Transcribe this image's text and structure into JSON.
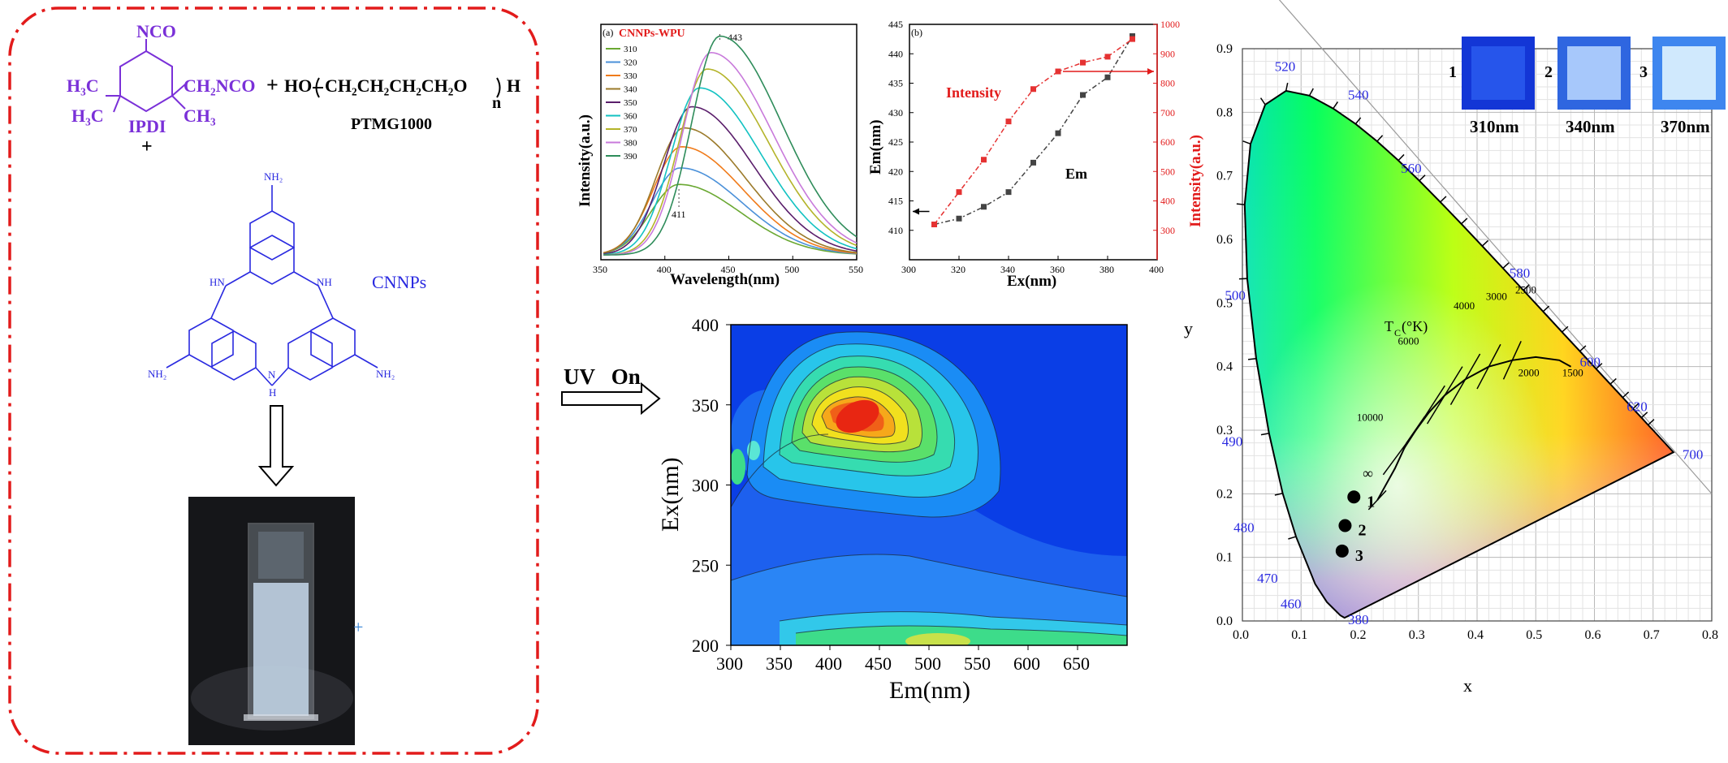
{
  "scheme": {
    "ipdi": {
      "nco_top": "NCO",
      "h3c_left": "H₃C",
      "ch2nco": "CH₂NCO",
      "h3c_low": "H₃C",
      "ch3": "CH₃",
      "name": "IPDI"
    },
    "plus1": "+",
    "ptmg": {
      "formula_prefix": "HO",
      "repeat": "CH₂CH₂CH₂CH₂O",
      "subscript": "n",
      "suffix": "H",
      "name": "PTMG1000"
    },
    "plus2": "+",
    "cnnps": {
      "nh2": "NH₂",
      "hn": "HN",
      "nh": "NH",
      "n": "N",
      "h": "H",
      "name": "CNNPs"
    },
    "arrow_label": "UV   On",
    "colors": {
      "border": "#e21b1b",
      "purple": "#7a30d8",
      "blue": "#2a2ae0"
    }
  },
  "panel_a": {
    "tag": "(a)",
    "title": "CNNPs-WPU",
    "xlabel": "Wavelength(nm)",
    "ylabel": "Intensity(a.u.)",
    "annot_443": "443",
    "annot_411": "411"
  },
  "panel_b": {
    "tag": "(b)",
    "xlabel": "Ex(nm)",
    "ylabel_left": "Em(nm)",
    "ylabel_right": "Intensity(a.u.)",
    "label_intensity": "Intensity",
    "label_em": "Em"
  },
  "contour": {
    "xlabel": "Em(nm)",
    "ylabel": "Ex(nm)"
  },
  "cie": {
    "xlabel": "x",
    "ylabel": "y",
    "tc_label": "T",
    "tc_sub": "C",
    "tc_unit": "(°K)",
    "cct_labels": [
      "10000",
      "6000",
      "4000",
      "3000",
      "2500",
      "2000",
      "1500",
      "∞"
    ],
    "wavelengths": [
      "520",
      "540",
      "560",
      "580",
      "600",
      "620",
      "700",
      "500",
      "490",
      "480",
      "470",
      "460",
      "380"
    ],
    "points": [
      "1",
      "2",
      "3"
    ],
    "photos": [
      {
        "num": "1",
        "label": "310nm"
      },
      {
        "num": "2",
        "label": "340nm"
      },
      {
        "num": "3",
        "label": "370nm"
      }
    ]
  },
  "chart_data": [
    {
      "type": "line",
      "title": "CNNPs-WPU",
      "xlabel": "Wavelength(nm)",
      "ylabel": "Intensity(a.u.)",
      "xlim": [
        350,
        550
      ],
      "xticks": [
        350,
        400,
        450,
        500,
        550
      ],
      "legend_placement": "top-left",
      "series": [
        {
          "name": "310",
          "color": "#6aa832",
          "peak_x": 411,
          "peak_y": 0.3
        },
        {
          "name": "320",
          "color": "#4a90d9",
          "peak_x": 412,
          "peak_y": 0.37
        },
        {
          "name": "330",
          "color": "#f07b1a",
          "peak_x": 413,
          "peak_y": 0.46
        },
        {
          "name": "340",
          "color": "#9b7a2a",
          "peak_x": 415,
          "peak_y": 0.54
        },
        {
          "name": "350",
          "color": "#5a1e6b",
          "peak_x": 421,
          "peak_y": 0.63
        },
        {
          "name": "360",
          "color": "#12c2c2",
          "peak_x": 427,
          "peak_y": 0.71
        },
        {
          "name": "370",
          "color": "#b4b42a",
          "peak_x": 433,
          "peak_y": 0.79
        },
        {
          "name": "380",
          "color": "#c87adb",
          "peak_x": 436,
          "peak_y": 0.86
        },
        {
          "name": "390",
          "color": "#2e8c5a",
          "peak_x": 443,
          "peak_y": 0.93
        }
      ]
    },
    {
      "type": "line",
      "xlabel": "Ex(nm)",
      "ylabel": "Em(nm)",
      "ylabel_right": "Intensity(a.u.)",
      "xlim": [
        300,
        400
      ],
      "ylim": [
        405,
        445
      ],
      "ylim_right": [
        200,
        1000
      ],
      "xticks": [
        300,
        320,
        340,
        360,
        380,
        400
      ],
      "yticks": [
        410,
        415,
        420,
        425,
        430,
        435,
        440,
        445
      ],
      "yticks_right": [
        300,
        400,
        500,
        600,
        700,
        800,
        900,
        1000
      ],
      "series": [
        {
          "name": "Em",
          "axis": "left",
          "color": "#444444",
          "x": [
            310,
            320,
            330,
            340,
            350,
            360,
            370,
            380,
            390
          ],
          "y": [
            411,
            412,
            414,
            416.5,
            421.5,
            426.5,
            433,
            436,
            443
          ]
        },
        {
          "name": "Intensity",
          "axis": "right",
          "color": "#e53232",
          "x": [
            310,
            320,
            330,
            340,
            350,
            360,
            370,
            380,
            390
          ],
          "y": [
            320,
            430,
            540,
            670,
            780,
            840,
            870,
            890,
            950
          ]
        }
      ]
    },
    {
      "type": "heatmap",
      "xlabel": "Em(nm)",
      "ylabel": "Ex(nm)",
      "xlim": [
        300,
        700
      ],
      "ylim": [
        200,
        400
      ],
      "xticks": [
        300,
        350,
        400,
        450,
        500,
        550,
        600,
        650
      ],
      "yticks": [
        200,
        250,
        300,
        350,
        400
      ],
      "peak": {
        "x": 425,
        "y": 360
      }
    },
    {
      "type": "scatter",
      "xlabel": "x",
      "ylabel": "y",
      "xlim": [
        0,
        0.8
      ],
      "ylim": [
        0,
        0.9
      ],
      "xticks": [
        0.0,
        0.1,
        0.2,
        0.3,
        0.4,
        0.5,
        0.6,
        0.7,
        0.8
      ],
      "yticks": [
        0.0,
        0.1,
        0.2,
        0.3,
        0.4,
        0.5,
        0.6,
        0.7,
        0.8,
        0.9
      ],
      "points": [
        {
          "label": "1",
          "x": 0.19,
          "y": 0.195
        },
        {
          "label": "2",
          "x": 0.175,
          "y": 0.15
        },
        {
          "label": "3",
          "x": 0.17,
          "y": 0.11
        }
      ]
    }
  ]
}
